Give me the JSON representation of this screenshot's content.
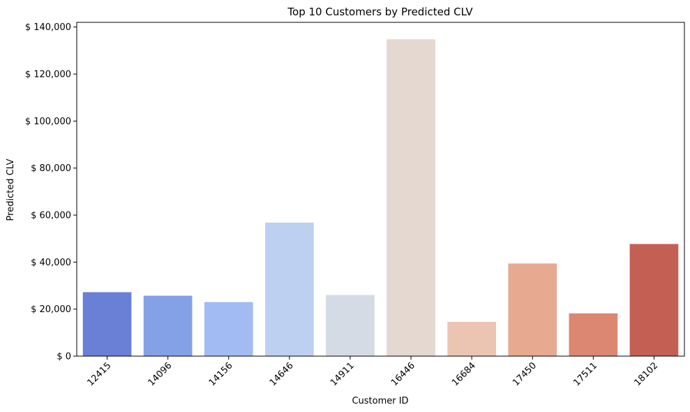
{
  "chart_data": {
    "type": "bar",
    "title": "Top 10 Customers by Predicted CLV",
    "xlabel": "Customer ID",
    "ylabel": "Predicted CLV",
    "categories": [
      "12415",
      "14096",
      "14156",
      "14646",
      "14911",
      "16446",
      "16684",
      "17450",
      "17511",
      "18102"
    ],
    "values": [
      27200,
      25700,
      23000,
      56800,
      26000,
      134800,
      14600,
      39400,
      18200,
      47700
    ],
    "colors": [
      "#6a7fd6",
      "#84a0e6",
      "#a2bbf3",
      "#bdd0f2",
      "#d5dbe5",
      "#e4d8d1",
      "#ecc5b2",
      "#e7a98f",
      "#dc8771",
      "#c35f53"
    ],
    "ylim": [
      0,
      142000
    ],
    "yticks": [
      0,
      20000,
      40000,
      60000,
      80000,
      100000,
      120000,
      140000
    ],
    "ytick_labels": [
      "$ 0",
      "$ 20,000",
      "$ 40,000",
      "$ 60,000",
      "$ 80,000",
      "$ 100,000",
      "$ 120,000",
      "$ 140,000"
    ],
    "grid": false,
    "legend": "none"
  }
}
